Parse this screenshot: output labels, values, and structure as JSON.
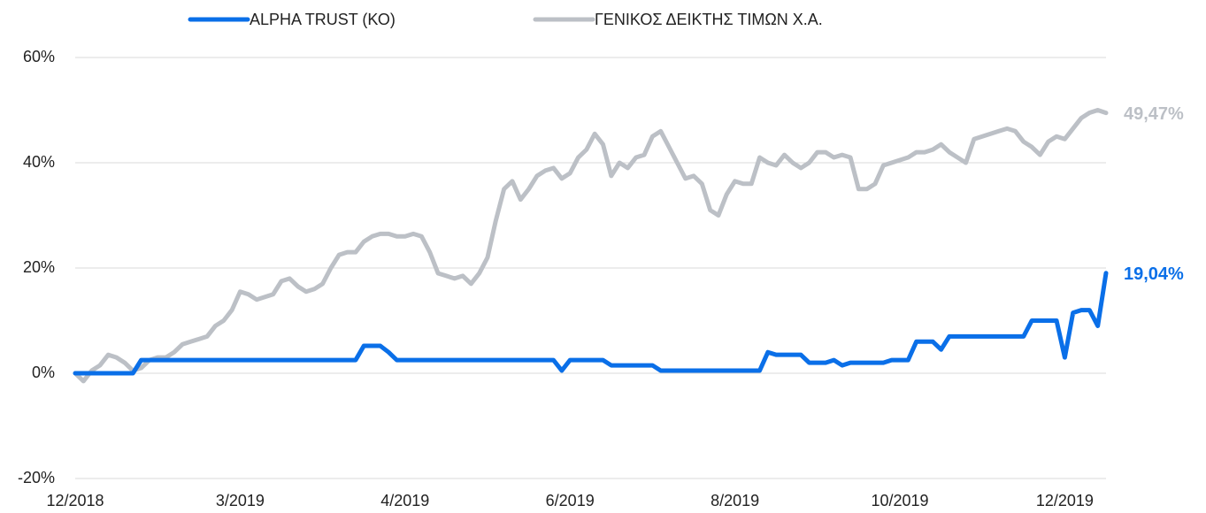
{
  "chart_data": {
    "type": "line",
    "categories": [
      "12/2018",
      null,
      null,
      null,
      null,
      null,
      null,
      null,
      null,
      null,
      null,
      null,
      null,
      null,
      null,
      null,
      null,
      null,
      null,
      null,
      "3/2019",
      null,
      null,
      null,
      null,
      null,
      null,
      null,
      null,
      null,
      null,
      null,
      null,
      null,
      null,
      null,
      null,
      null,
      null,
      null,
      "4/2019",
      null,
      null,
      null,
      null,
      null,
      null,
      null,
      null,
      null,
      null,
      null,
      null,
      null,
      null,
      null,
      null,
      null,
      null,
      null,
      "6/2019",
      null,
      null,
      null,
      null,
      null,
      null,
      null,
      null,
      null,
      null,
      null,
      null,
      null,
      null,
      null,
      null,
      null,
      null,
      null,
      "8/2019",
      null,
      null,
      null,
      null,
      null,
      null,
      null,
      null,
      null,
      null,
      null,
      null,
      null,
      null,
      null,
      null,
      null,
      null,
      null,
      "10/2019",
      null,
      null,
      null,
      null,
      null,
      null,
      null,
      null,
      null,
      null,
      null,
      null,
      null,
      null,
      null,
      null,
      null,
      null,
      null,
      "12/2019",
      null,
      null,
      null,
      null,
      null
    ],
    "series": [
      {
        "name": "ALPHA TRUST (ΚΟ)",
        "color": "#0a6fe8",
        "values": [
          0,
          0,
          0,
          0,
          0,
          0,
          0,
          0,
          2.5,
          2.5,
          2.5,
          2.5,
          2.5,
          2.5,
          2.5,
          2.5,
          2.5,
          2.5,
          2.5,
          2.5,
          2.5,
          2.5,
          2.5,
          2.5,
          2.5,
          2.5,
          2.5,
          2.5,
          2.5,
          2.5,
          2.5,
          2.5,
          2.5,
          2.5,
          2.5,
          5.2,
          5.2,
          5.2,
          4,
          2.5,
          2.5,
          2.5,
          2.5,
          2.5,
          2.5,
          2.5,
          2.5,
          2.5,
          2.5,
          2.5,
          2.5,
          2.5,
          2.5,
          2.5,
          2.5,
          2.5,
          2.5,
          2.5,
          2.5,
          0.5,
          2.5,
          2.5,
          2.5,
          2.5,
          2.5,
          1.5,
          1.5,
          1.5,
          1.5,
          1.5,
          1.5,
          0.5,
          0.5,
          0.5,
          0.5,
          0.5,
          0.5,
          0.5,
          0.5,
          0.5,
          0.5,
          0.5,
          0.5,
          0.5,
          4,
          3.5,
          3.5,
          3.5,
          3.5,
          2,
          2,
          2,
          2.5,
          1.5,
          2,
          2,
          2,
          2,
          2,
          2.5,
          2.5,
          2.5,
          6,
          6,
          6,
          4.5,
          7,
          7,
          7,
          7,
          7,
          7,
          7,
          7,
          7,
          7,
          10,
          10,
          10,
          10,
          3,
          11.5,
          12,
          12,
          9,
          19.04
        ],
        "value_labels": [
          null,
          null,
          null,
          null,
          null,
          null,
          null,
          null,
          null,
          null,
          null,
          null,
          null,
          null,
          null,
          null,
          null,
          null,
          null,
          null,
          null,
          null,
          null,
          null,
          null,
          null,
          null,
          null,
          null,
          null,
          null,
          null,
          null,
          null,
          null,
          null,
          null,
          null,
          null,
          null,
          null,
          null,
          null,
          null,
          null,
          null,
          null,
          null,
          null,
          null,
          null,
          null,
          null,
          null,
          null,
          null,
          null,
          null,
          null,
          null,
          null,
          null,
          null,
          null,
          null,
          null,
          null,
          null,
          null,
          null,
          null,
          null,
          null,
          null,
          null,
          null,
          null,
          null,
          null,
          null,
          null,
          null,
          null,
          null,
          null,
          null,
          null,
          null,
          null,
          null,
          null,
          null,
          null,
          null,
          null,
          null,
          null,
          null,
          null,
          null,
          null,
          null,
          null,
          null,
          null,
          null,
          null,
          null,
          null,
          null,
          null,
          null,
          null,
          null,
          null,
          null,
          null,
          null,
          null,
          null,
          null,
          null,
          null,
          null,
          null,
          "19,04%"
        ]
      },
      {
        "name": "ΓΕΝΙΚΟΣ ΔΕΙΚΤΗΣ ΤΙΜΩΝ Χ.Α.",
        "color": "#bcc0c6",
        "values": [
          0,
          -1.5,
          0.5,
          1.5,
          3.5,
          3,
          2,
          0.5,
          1,
          2.5,
          3,
          3,
          4,
          5.5,
          6,
          6.5,
          7,
          9,
          10,
          12,
          15.5,
          15,
          14,
          14.5,
          15,
          17.5,
          18,
          16.5,
          15.5,
          16,
          17,
          20,
          22.5,
          23,
          23,
          25,
          26,
          26.5,
          26.5,
          26,
          26,
          26.5,
          26,
          23,
          19,
          18.5,
          18,
          18.5,
          17,
          19,
          22,
          29,
          35,
          36.5,
          33,
          35,
          37.5,
          38.5,
          39,
          37,
          38,
          41,
          42.5,
          45.5,
          43.5,
          37.5,
          40,
          39,
          41,
          41.5,
          45,
          46,
          43,
          40,
          37,
          37.5,
          36,
          31,
          30,
          34,
          36.5,
          36,
          36,
          41,
          40,
          39.5,
          41.5,
          40,
          39,
          40,
          42,
          42,
          41,
          41.5,
          41,
          35,
          35,
          36,
          39.5,
          40,
          40.5,
          41,
          42,
          42,
          42.5,
          43.5,
          42,
          41,
          40,
          44.5,
          45,
          45.5,
          46,
          46.5,
          46,
          44,
          43,
          41.5,
          44,
          45,
          44.5,
          46.5,
          48.5,
          49.5,
          50,
          49.47
        ],
        "value_labels": [
          null,
          null,
          null,
          null,
          null,
          null,
          null,
          null,
          null,
          null,
          null,
          null,
          null,
          null,
          null,
          null,
          null,
          null,
          null,
          null,
          null,
          null,
          null,
          null,
          null,
          null,
          null,
          null,
          null,
          null,
          null,
          null,
          null,
          null,
          null,
          null,
          null,
          null,
          null,
          null,
          null,
          null,
          null,
          null,
          null,
          null,
          null,
          null,
          null,
          null,
          null,
          null,
          null,
          null,
          null,
          null,
          null,
          null,
          null,
          null,
          null,
          null,
          null,
          null,
          null,
          null,
          null,
          null,
          null,
          null,
          null,
          null,
          null,
          null,
          null,
          null,
          null,
          null,
          null,
          null,
          null,
          null,
          null,
          null,
          null,
          null,
          null,
          null,
          null,
          null,
          null,
          null,
          null,
          null,
          null,
          null,
          null,
          null,
          null,
          null,
          null,
          null,
          null,
          null,
          null,
          null,
          null,
          null,
          null,
          null,
          null,
          null,
          null,
          null,
          null,
          null,
          null,
          null,
          null,
          null,
          null,
          null,
          null,
          null,
          null,
          "49,47%"
        ]
      }
    ],
    "ylim": [
      -20,
      60
    ],
    "yticks": [
      {
        "value": -20,
        "label": "-20%"
      },
      {
        "value": 0,
        "label": "0%"
      },
      {
        "value": 20,
        "label": "20%"
      },
      {
        "value": 40,
        "label": "40%"
      },
      {
        "value": 60,
        "label": "60%"
      }
    ],
    "grid": true,
    "legend": "top"
  }
}
